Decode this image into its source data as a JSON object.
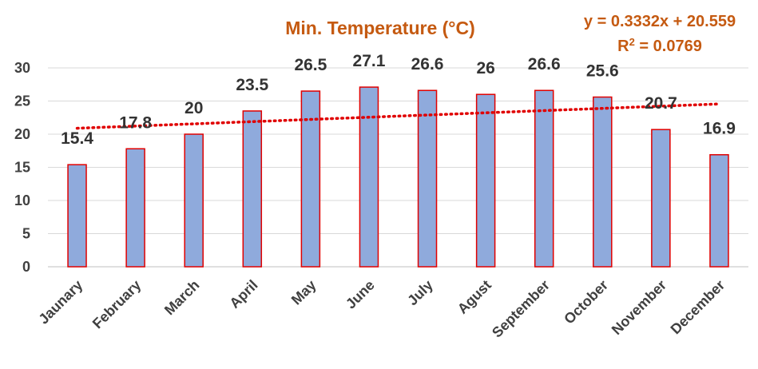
{
  "chart_data": {
    "type": "bar",
    "title": "Min. Temperature   (°C)",
    "categories": [
      "Jaunary",
      "February",
      "March",
      "April",
      "May",
      "June",
      "July",
      "Agust",
      "September",
      "October",
      "November",
      "December"
    ],
    "values": [
      15.4,
      17.8,
      20,
      23.5,
      26.5,
      27.1,
      26.6,
      26,
      26.6,
      25.6,
      20.7,
      16.9
    ],
    "data_labels": [
      "15.4",
      "17.8",
      "20",
      "23.5",
      "26.5",
      "27.1",
      "26.6",
      "26",
      "26.6",
      "25.6",
      "20.7",
      "16.9"
    ],
    "ylim": [
      0,
      30
    ],
    "yticks": [
      0,
      5,
      10,
      15,
      20,
      25,
      30
    ],
    "grid": true,
    "legend": "none",
    "trendline": {
      "type": "linear",
      "slope": 0.3332,
      "intercept": 20.559,
      "equation_label": "y = 0.3332x + 20.559",
      "r2_prefix": "R",
      "r2_sup": "2",
      "r2_suffix": " = 0.0769"
    },
    "colors": {
      "bar_fill": "#8faadc",
      "bar_outline": "#e00000",
      "trendline": "#e00000",
      "title": "#c55a11"
    }
  }
}
